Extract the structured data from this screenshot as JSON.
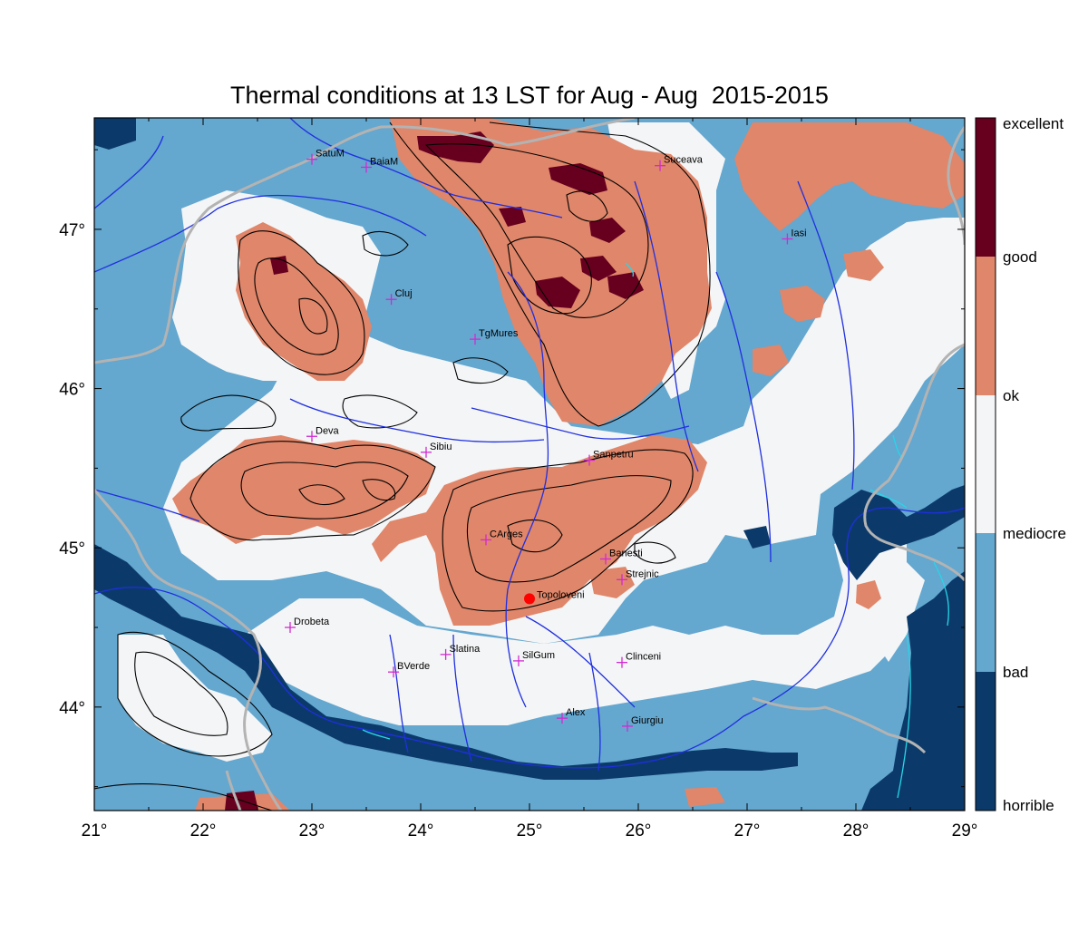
{
  "title": "Thermal conditions at 13 LST for Aug - Aug  2015-2015",
  "colors": {
    "excellent": "#67001f",
    "good": "#e0866a",
    "ok": "#f4f5f6",
    "mediocre": "#64a7cf",
    "bad": "#0b3a6a",
    "border": "#b3b3b3",
    "rivers": "#1f2fe0",
    "lakes": "#27d6e8",
    "contours": "#000000",
    "city_marker": "#d22ad2",
    "highlight_marker": "#ff0000"
  },
  "legend": {
    "classes": [
      "excellent",
      "good",
      "ok",
      "mediocre",
      "bad",
      "horrible"
    ]
  },
  "axes": {
    "x_ticks": [
      "21°",
      "22°",
      "23°",
      "24°",
      "25°",
      "26°",
      "27°",
      "28°",
      "29°"
    ],
    "y_ticks": [
      "44°",
      "45°",
      "46°",
      "47°"
    ],
    "lon_range": [
      21,
      29
    ],
    "lat_range": [
      43.35,
      47.7
    ]
  },
  "cities": [
    {
      "name": "SatuM",
      "lon": 23.0,
      "lat": 47.44
    },
    {
      "name": "BaiaM",
      "lon": 23.5,
      "lat": 47.39
    },
    {
      "name": "Suceava",
      "lon": 26.2,
      "lat": 47.4
    },
    {
      "name": "Iasi",
      "lon": 27.37,
      "lat": 46.94
    },
    {
      "name": "Cluj",
      "lon": 23.73,
      "lat": 46.56
    },
    {
      "name": "TgMures",
      "lon": 24.5,
      "lat": 46.31
    },
    {
      "name": "Deva",
      "lon": 23.0,
      "lat": 45.7
    },
    {
      "name": "Sibiu",
      "lon": 24.05,
      "lat": 45.6
    },
    {
      "name": "Sanpetru",
      "lon": 25.55,
      "lat": 45.55
    },
    {
      "name": "CArges",
      "lon": 24.6,
      "lat": 45.05
    },
    {
      "name": "Banesti",
      "lon": 25.7,
      "lat": 44.93
    },
    {
      "name": "Strejnic",
      "lon": 25.85,
      "lat": 44.8
    },
    {
      "name": "Drobeta",
      "lon": 22.8,
      "lat": 44.5
    },
    {
      "name": "Slatina",
      "lon": 24.23,
      "lat": 44.33
    },
    {
      "name": "SilGum",
      "lon": 24.9,
      "lat": 44.29
    },
    {
      "name": "Clinceni",
      "lon": 25.85,
      "lat": 44.28
    },
    {
      "name": "BVerde",
      "lon": 23.75,
      "lat": 44.22
    },
    {
      "name": "Alex",
      "lon": 25.3,
      "lat": 43.93
    },
    {
      "name": "Giurgiu",
      "lon": 25.9,
      "lat": 43.88
    }
  ],
  "highlight": {
    "name": "Topoloveni",
    "lon": 25.0,
    "lat": 44.68
  }
}
